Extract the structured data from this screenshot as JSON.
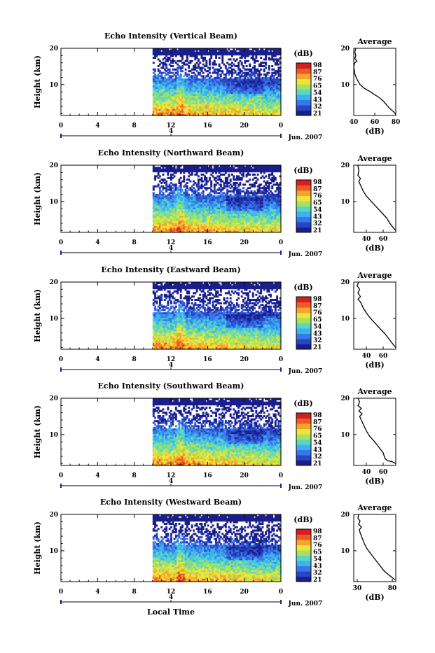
{
  "figure": {
    "xlabel": "Local Time",
    "date_label": "Jun. 2007",
    "colorbar_unit": "(dB)",
    "colorbar_labels": [
      "21",
      "32",
      "43",
      "54",
      "65",
      "76",
      "87",
      "98"
    ],
    "colors": [
      "#1a1f8c",
      "#2846c8",
      "#3a78e8",
      "#39b4f0",
      "#5bd6c6",
      "#a6e35a",
      "#f0e43c",
      "#f6a52c",
      "#ee5a26",
      "#d81e1e"
    ]
  },
  "chart_data": [
    {
      "type": "heatmap",
      "title": "Echo Intensity (Vertical Beam)",
      "xlabel": "",
      "ylabel": "Height (km)",
      "xlim": [
        0,
        24
      ],
      "x_ticks": [
        "0",
        "4",
        "8",
        "12",
        "16",
        "20",
        "0"
      ],
      "secondary_tick": "4",
      "ylim": [
        1.5,
        20
      ],
      "y_ticks": [
        "20",
        "10"
      ],
      "data_start_hour": 10,
      "color_range": [
        21,
        98
      ],
      "avg": {
        "title": "Average",
        "xlabel": "(dB)",
        "xlim": [
          40,
          80
        ],
        "x_ticks": [
          "40",
          "60",
          "80"
        ],
        "ylim": [
          1.5,
          20
        ],
        "y_ticks": [
          "20",
          "10"
        ],
        "profile": [
          [
            80,
            1.8
          ],
          [
            78,
            2.5
          ],
          [
            74,
            3.5
          ],
          [
            71,
            4.5
          ],
          [
            68,
            5.5
          ],
          [
            64,
            6.5
          ],
          [
            60,
            7.2
          ],
          [
            56,
            8.0
          ],
          [
            50,
            9.0
          ],
          [
            46,
            10.0
          ],
          [
            43,
            11.5
          ],
          [
            41,
            13.0
          ],
          [
            40,
            15.0
          ],
          [
            41,
            16.0
          ],
          [
            43,
            16.5
          ],
          [
            41,
            17.2
          ],
          [
            42,
            18.0
          ],
          [
            41,
            19.0
          ],
          [
            42,
            20.0
          ]
        ]
      }
    },
    {
      "type": "heatmap",
      "title": "Echo Intensity (Northward Beam)",
      "xlabel": "",
      "ylabel": "Height (km)",
      "xlim": [
        0,
        24
      ],
      "x_ticks": [
        "0",
        "4",
        "8",
        "12",
        "16",
        "20",
        "0"
      ],
      "secondary_tick": "4",
      "ylim": [
        1.5,
        20
      ],
      "y_ticks": [
        "20",
        "10"
      ],
      "data_start_hour": 10,
      "color_range": [
        21,
        98
      ],
      "avg": {
        "title": "Average",
        "xlabel": "(dB)",
        "xlim": [
          25,
          75
        ],
        "x_ticks": [
          "40",
          "60"
        ],
        "ylim": [
          1.5,
          20
        ],
        "y_ticks": [
          "20",
          "10"
        ],
        "profile": [
          [
            75,
            2.0
          ],
          [
            72,
            2.8
          ],
          [
            68,
            4.0
          ],
          [
            64,
            5.5
          ],
          [
            58,
            7.0
          ],
          [
            52,
            8.5
          ],
          [
            46,
            10.0
          ],
          [
            40,
            11.5
          ],
          [
            36,
            13.0
          ],
          [
            33,
            14.5
          ],
          [
            31,
            15.5
          ],
          [
            33,
            16.3
          ],
          [
            30,
            17.2
          ],
          [
            31,
            18.5
          ],
          [
            30,
            20.0
          ]
        ]
      }
    },
    {
      "type": "heatmap",
      "title": "Echo Intensity (Eastward Beam)",
      "xlabel": "",
      "ylabel": "Height (km)",
      "xlim": [
        0,
        24
      ],
      "x_ticks": [
        "0",
        "4",
        "8",
        "12",
        "16",
        "20",
        "0"
      ],
      "secondary_tick": "4",
      "ylim": [
        1.5,
        20
      ],
      "y_ticks": [
        "20",
        "10"
      ],
      "data_start_hour": 10,
      "color_range": [
        21,
        98
      ],
      "avg": {
        "title": "Average",
        "xlabel": "(dB)",
        "xlim": [
          25,
          75
        ],
        "x_ticks": [
          "40",
          "60"
        ],
        "ylim": [
          1.5,
          20
        ],
        "y_ticks": [
          "20",
          "10"
        ],
        "profile": [
          [
            75,
            2.0
          ],
          [
            72,
            2.8
          ],
          [
            68,
            4.0
          ],
          [
            63,
            5.5
          ],
          [
            57,
            7.0
          ],
          [
            51,
            8.5
          ],
          [
            45,
            10.0
          ],
          [
            40,
            11.5
          ],
          [
            36,
            13.0
          ],
          [
            33,
            14.5
          ],
          [
            30,
            15.3
          ],
          [
            33,
            16.0
          ],
          [
            30,
            17.0
          ],
          [
            32,
            18.0
          ],
          [
            29,
            19.0
          ],
          [
            31,
            20.0
          ]
        ]
      }
    },
    {
      "type": "heatmap",
      "title": "Echo Intensity (Southward Beam)",
      "xlabel": "",
      "ylabel": "Height (km)",
      "xlim": [
        0,
        24
      ],
      "x_ticks": [
        "0",
        "4",
        "8",
        "12",
        "16",
        "20",
        "0"
      ],
      "secondary_tick": "4",
      "ylim": [
        1.5,
        20
      ],
      "y_ticks": [
        "20",
        "10"
      ],
      "data_start_hour": 10,
      "color_range": [
        21,
        98
      ],
      "avg": {
        "title": "Average",
        "xlabel": "(dB)",
        "xlim": [
          25,
          75
        ],
        "x_ticks": [
          "40",
          "60"
        ],
        "ylim": [
          1.5,
          20
        ],
        "y_ticks": [
          "20",
          "10"
        ],
        "profile": [
          [
            75,
            2.0
          ],
          [
            70,
            2.6
          ],
          [
            65,
            2.8
          ],
          [
            62,
            3.5
          ],
          [
            60,
            5.0
          ],
          [
            55,
            6.5
          ],
          [
            50,
            8.0
          ],
          [
            44,
            9.5
          ],
          [
            40,
            11.0
          ],
          [
            37,
            12.5
          ],
          [
            34,
            14.0
          ],
          [
            32,
            15.0
          ],
          [
            35,
            15.7
          ],
          [
            31,
            16.5
          ],
          [
            34,
            17.2
          ],
          [
            30,
            18.0
          ],
          [
            32,
            19.0
          ],
          [
            30,
            20.0
          ]
        ]
      }
    },
    {
      "type": "heatmap",
      "title": "Echo Intensity (Westward Beam)",
      "xlabel": "",
      "ylabel": "Height (km)",
      "xlim": [
        0,
        24
      ],
      "x_ticks": [
        "0",
        "4",
        "8",
        "12",
        "16",
        "20",
        "0"
      ],
      "secondary_tick": "4",
      "ylim": [
        1.5,
        20
      ],
      "y_ticks": [
        "20",
        "10"
      ],
      "data_start_hour": 10,
      "color_range": [
        21,
        98
      ],
      "avg": {
        "title": "Average",
        "xlabel": "(dB)",
        "xlim": [
          25,
          85
        ],
        "x_ticks": [
          "30",
          "80"
        ],
        "ylim": [
          1.5,
          20
        ],
        "y_ticks": [
          "20",
          "10"
        ],
        "profile": [
          [
            84,
            2.0
          ],
          [
            80,
            2.6
          ],
          [
            74,
            3.5
          ],
          [
            68,
            4.5
          ],
          [
            62,
            6.0
          ],
          [
            56,
            7.5
          ],
          [
            50,
            9.0
          ],
          [
            44,
            10.5
          ],
          [
            40,
            12.0
          ],
          [
            37,
            13.5
          ],
          [
            34,
            15.0
          ],
          [
            33,
            15.8
          ],
          [
            36,
            16.5
          ],
          [
            32,
            17.3
          ],
          [
            34,
            18.2
          ],
          [
            31,
            19.0
          ],
          [
            32,
            20.0
          ]
        ]
      }
    }
  ]
}
